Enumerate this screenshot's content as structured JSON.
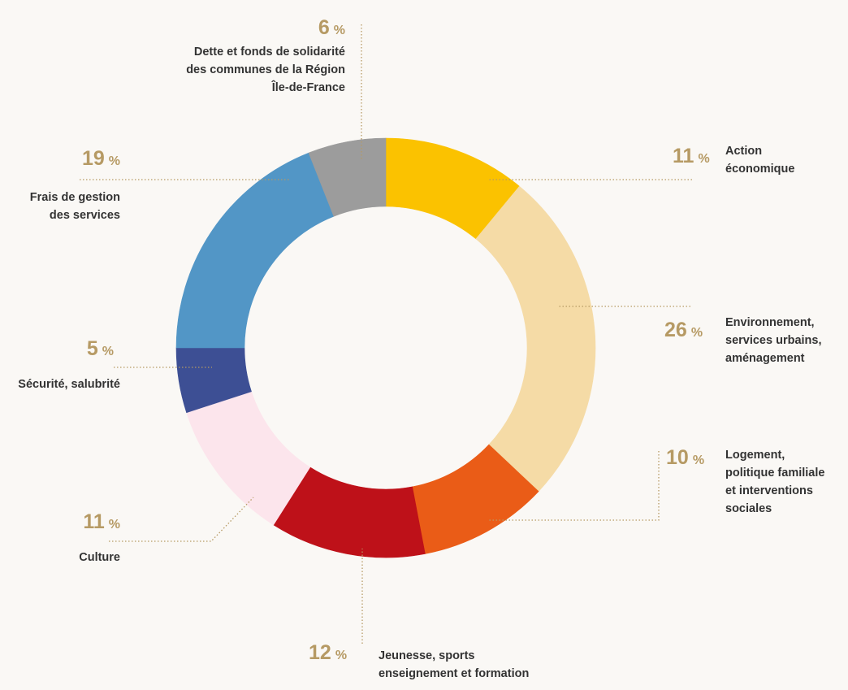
{
  "chart_data": {
    "type": "pie",
    "variant": "donut",
    "legend": "none",
    "slices": [
      {
        "label": "Action économique",
        "lines": [
          "Action",
          "économique"
        ],
        "value": 11,
        "color": "#fbc200"
      },
      {
        "label": "Environnement, services urbains, aménagement",
        "lines": [
          "Environnement,",
          "services urbains,",
          "aménagement"
        ],
        "value": 26,
        "color": "#f5dba6"
      },
      {
        "label": "Logement, politique familiale et interventions sociales",
        "lines": [
          "Logement,",
          "politique familiale",
          "et interventions",
          "sociales"
        ],
        "value": 10,
        "color": "#ea5c17"
      },
      {
        "label": "Jeunesse, sports enseignement et formation",
        "lines": [
          "Jeunesse, sports",
          "enseignement et formation"
        ],
        "value": 12,
        "color": "#be1119"
      },
      {
        "label": "Culture",
        "lines": [
          "Culture"
        ],
        "value": 11,
        "color": "#fce5ec"
      },
      {
        "label": "Sécurité, salubrité",
        "lines": [
          "Sécurité, salubrité"
        ],
        "value": 5,
        "color": "#3d4f94"
      },
      {
        "label": "Frais de gestion des services",
        "lines": [
          "Frais de gestion",
          "des services"
        ],
        "value": 19,
        "color": "#5296c6"
      },
      {
        "label": "Dette et fonds de solidarité des communes de la Région Île-de-France",
        "lines": [
          "Dette et fonds de solidarité",
          "des communes de la Région",
          "Île-de-France"
        ],
        "value": 6,
        "color": "#9c9c9c"
      }
    ],
    "value_labels": [
      "11",
      "26",
      "10",
      "12",
      "11",
      "5",
      "19",
      "6"
    ],
    "unit": "%",
    "leader_color": "#b69a64"
  }
}
